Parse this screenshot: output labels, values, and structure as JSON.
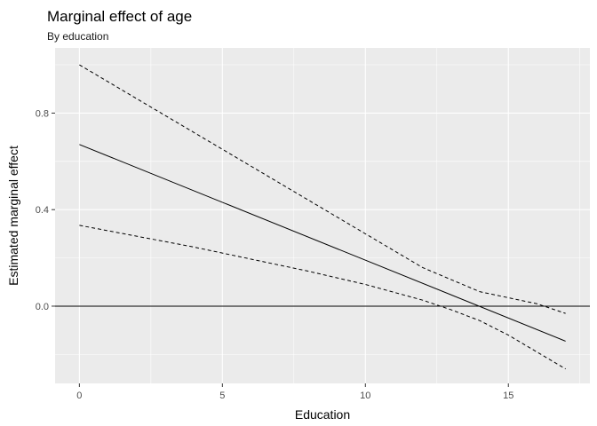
{
  "chart_data": {
    "type": "line",
    "title": "Marginal effect of age",
    "subtitle": "By education",
    "xlabel": "Education",
    "ylabel": "Estimated marginal effect",
    "xlim": [
      -0.85,
      17.85
    ],
    "ylim": [
      -0.32,
      1.07
    ],
    "x_ticks": [
      0,
      5,
      10,
      15
    ],
    "x_tick_labels": [
      "0",
      "5",
      "10",
      "15"
    ],
    "y_ticks": [
      0.0,
      0.4,
      0.8
    ],
    "y_tick_labels": [
      "0.0",
      "0.4",
      "0.8"
    ],
    "grid": true,
    "background": "#ebebeb",
    "grid_color": "#ffffff",
    "reference_line": {
      "y": 0,
      "color": "#000000"
    },
    "series": [
      {
        "style": "dashed",
        "color": "#000000",
        "x": [
          0,
          2,
          4,
          6,
          8,
          10,
          12,
          14,
          16,
          17
        ],
        "y": [
          1.0,
          0.86,
          0.72,
          0.58,
          0.44,
          0.3,
          0.16,
          0.06,
          0.01,
          -0.03
        ]
      },
      {
        "style": "solid",
        "color": "#000000",
        "x": [
          0,
          17
        ],
        "y": [
          0.67,
          -0.145
        ]
      },
      {
        "style": "dashed",
        "color": "#000000",
        "x": [
          0,
          2,
          4,
          6,
          8,
          10,
          12,
          13,
          14,
          15,
          16,
          17
        ],
        "y": [
          0.335,
          0.29,
          0.245,
          0.195,
          0.145,
          0.09,
          0.025,
          -0.015,
          -0.06,
          -0.12,
          -0.19,
          -0.26
        ]
      }
    ]
  }
}
